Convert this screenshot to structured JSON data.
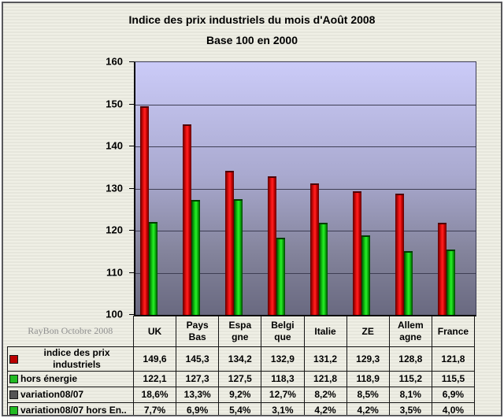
{
  "title": {
    "line1": "Indice des prix industriels du mois d'Août 2008",
    "line2": "Base 100 en 2000"
  },
  "watermark": "RayBon Octobre 2008",
  "colors": {
    "background": "#e6e6dc",
    "frame_border": "#57575b",
    "plot_gradient_top": "#cbcbf8",
    "plot_gradient_bottom": "#696980",
    "gridline": "#3e3e54",
    "bar_red": "#ee1111",
    "bar_green": "#15d415",
    "key_red": "#bb0000",
    "key_green": "#22bb22",
    "key_gray": "#555555",
    "watermark_text": "#8f8f8f"
  },
  "chart_data": {
    "type": "bar",
    "title": "Indice des prix industriels du mois d'Août 2008 — Base 100 en 2000",
    "categories": [
      "UK",
      "Pays Bas",
      "Espagne",
      "Belgique",
      "Italie",
      "ZE",
      "Allemagne",
      "France"
    ],
    "category_labels_wrapped": [
      [
        "UK"
      ],
      [
        "Pays",
        "Bas"
      ],
      [
        "Espa",
        "gne"
      ],
      [
        "Belgi",
        "que"
      ],
      [
        "Italie"
      ],
      [
        "ZE"
      ],
      [
        "Allem",
        "agne"
      ],
      [
        "France"
      ]
    ],
    "ylim": [
      100,
      160
    ],
    "yticks": [
      160,
      150,
      140,
      130,
      120,
      110,
      100
    ],
    "grid": true,
    "legend_position": "table-left",
    "series": [
      {
        "name": "indice des prix industriels",
        "key_color": "#bb0000",
        "bar": "red",
        "values": [
          149.6,
          145.3,
          134.2,
          132.9,
          131.2,
          129.3,
          128.8,
          121.8
        ],
        "display": [
          "149,6",
          "145,3",
          "134,2",
          "132,9",
          "131,2",
          "129,3",
          "128,8",
          "121,8"
        ]
      },
      {
        "name": "hors énergie",
        "key_color": "#22bb22",
        "bar": "green",
        "values": [
          122.1,
          127.3,
          127.5,
          118.3,
          121.8,
          118.9,
          115.2,
          115.5
        ],
        "display": [
          "122,1",
          "127,3",
          "127,5",
          "118,3",
          "121,8",
          "118,9",
          "115,2",
          "115,5"
        ]
      },
      {
        "name": "variation08/07",
        "key_color": "#555555",
        "bar": "none",
        "values": [
          18.6,
          13.3,
          9.2,
          12.7,
          8.2,
          8.5,
          8.1,
          6.9
        ],
        "display": [
          "18,6%",
          "13,3%",
          "9,2%",
          "12,7%",
          "8,2%",
          "8,5%",
          "8,1%",
          "6,9%"
        ]
      },
      {
        "name": "variation08/07 hors En..",
        "key_color": "#22bb22",
        "bar": "none",
        "values": [
          7.7,
          6.9,
          5.4,
          3.1,
          4.2,
          4.2,
          3.5,
          4.0
        ],
        "display": [
          "7,7%",
          "6,9%",
          "5,4%",
          "3,1%",
          "4,2%",
          "4,2%",
          "3,5%",
          "4,0%"
        ]
      }
    ]
  }
}
